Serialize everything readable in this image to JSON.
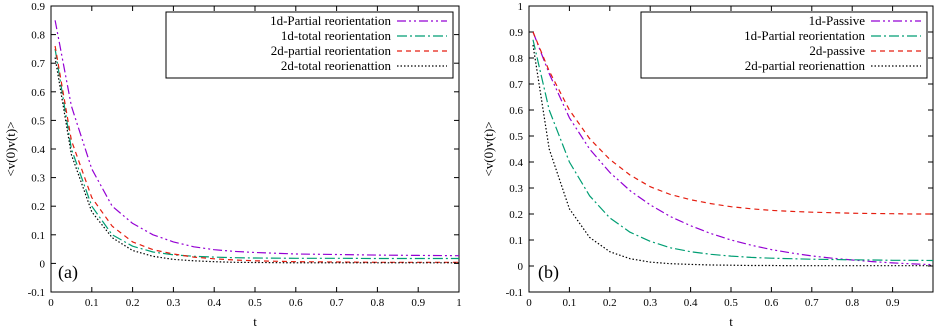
{
  "chart_data": [
    {
      "type": "line",
      "panel_label": "(a)",
      "xlabel": "t",
      "ylabel": "<v(0)v(t)>",
      "xlim": [
        0,
        1
      ],
      "ylim": [
        -0.1,
        0.9
      ],
      "xticks": [
        "0",
        "0.1",
        "0.2",
        "0.3",
        "0.4",
        "0.5",
        "0.6",
        "0.7",
        "0.8",
        "0.9",
        "1"
      ],
      "yticks": [
        "-0.1",
        "0",
        "0.1",
        "0.2",
        "0.3",
        "0.4",
        "0.5",
        "0.6",
        "0.7",
        "0.8",
        "0.9"
      ],
      "legend_position": "top-right",
      "grid": false,
      "x": [
        0.01,
        0.05,
        0.1,
        0.15,
        0.2,
        0.25,
        0.3,
        0.35,
        0.4,
        0.45,
        0.5,
        0.6,
        0.7,
        0.8,
        0.9,
        1.0
      ],
      "series": [
        {
          "name": "1d-Partial reorientation",
          "color": "#9400d3",
          "dash": "dashdotdot",
          "values": [
            0.85,
            0.55,
            0.33,
            0.2,
            0.14,
            0.1,
            0.075,
            0.058,
            0.048,
            0.042,
            0.038,
            0.033,
            0.031,
            0.029,
            0.028,
            0.027
          ]
        },
        {
          "name": "1d-total reorientation",
          "color": "#009e73",
          "dash": "dashdot",
          "values": [
            0.75,
            0.4,
            0.2,
            0.1,
            0.06,
            0.04,
            0.03,
            0.025,
            0.022,
            0.02,
            0.019,
            0.018,
            0.018,
            0.017,
            0.017,
            0.017
          ]
        },
        {
          "name": "2d-partial reorientation",
          "color": "#e51e10",
          "dash": "dashed",
          "values": [
            0.76,
            0.43,
            0.23,
            0.13,
            0.075,
            0.048,
            0.033,
            0.022,
            0.016,
            0.012,
            0.009,
            0.006,
            0.005,
            0.004,
            0.004,
            0.004
          ]
        },
        {
          "name": "2d-total reorienattion",
          "color": "#000000",
          "dash": "dotted",
          "values": [
            0.72,
            0.38,
            0.18,
            0.09,
            0.045,
            0.025,
            0.014,
            0.009,
            0.006,
            0.004,
            0.003,
            0.002,
            0.002,
            0.002,
            0.002,
            0.002
          ]
        }
      ]
    },
    {
      "type": "line",
      "panel_label": "(b)",
      "xlabel": "t",
      "ylabel": "<v(0)v(t)>",
      "xlim": [
        0,
        1
      ],
      "ylim": [
        -0.1,
        1
      ],
      "xticks": [
        "0",
        "0.1",
        "0.2",
        "0.3",
        "0.4",
        "0.5",
        "0.6",
        "0.7",
        "0.8",
        "0.9"
      ],
      "yticks": [
        "-0.1",
        "0",
        "0.1",
        "0.2",
        "0.3",
        "0.4",
        "0.5",
        "0.6",
        "0.7",
        "0.8",
        "0.9",
        "1"
      ],
      "legend_position": "top-right",
      "grid": false,
      "x": [
        0.01,
        0.05,
        0.1,
        0.15,
        0.2,
        0.25,
        0.3,
        0.35,
        0.4,
        0.45,
        0.5,
        0.55,
        0.6,
        0.65,
        0.7,
        0.75,
        0.8,
        0.85,
        0.9,
        0.95,
        1.0
      ],
      "series": [
        {
          "name": "1d-Passive",
          "color": "#9400d3",
          "dash": "dashdotdot",
          "values": [
            0.9,
            0.74,
            0.57,
            0.45,
            0.36,
            0.29,
            0.235,
            0.19,
            0.155,
            0.125,
            0.1,
            0.08,
            0.063,
            0.05,
            0.039,
            0.03,
            0.023,
            0.017,
            0.012,
            0.008,
            0.005
          ]
        },
        {
          "name": "1d-Partial reorientation",
          "color": "#009e73",
          "dash": "dashdot",
          "values": [
            0.87,
            0.6,
            0.4,
            0.27,
            0.185,
            0.13,
            0.095,
            0.07,
            0.055,
            0.045,
            0.038,
            0.033,
            0.03,
            0.028,
            0.026,
            0.025,
            0.024,
            0.023,
            0.022,
            0.022,
            0.021
          ]
        },
        {
          "name": "2d-passive",
          "color": "#e51e10",
          "dash": "dashed",
          "values": [
            0.9,
            0.75,
            0.6,
            0.49,
            0.41,
            0.35,
            0.305,
            0.275,
            0.255,
            0.24,
            0.228,
            0.22,
            0.214,
            0.21,
            0.207,
            0.205,
            0.203,
            0.202,
            0.201,
            0.2,
            0.2
          ]
        },
        {
          "name": "2d-partial reorienattion",
          "color": "#000000",
          "dash": "dotted",
          "values": [
            0.85,
            0.45,
            0.22,
            0.11,
            0.055,
            0.028,
            0.015,
            0.009,
            0.006,
            0.004,
            0.003,
            0.002,
            0.002,
            0.001,
            0.001,
            0.001,
            0.001,
            0.001,
            0.001,
            0.001,
            0.001
          ]
        }
      ]
    }
  ]
}
